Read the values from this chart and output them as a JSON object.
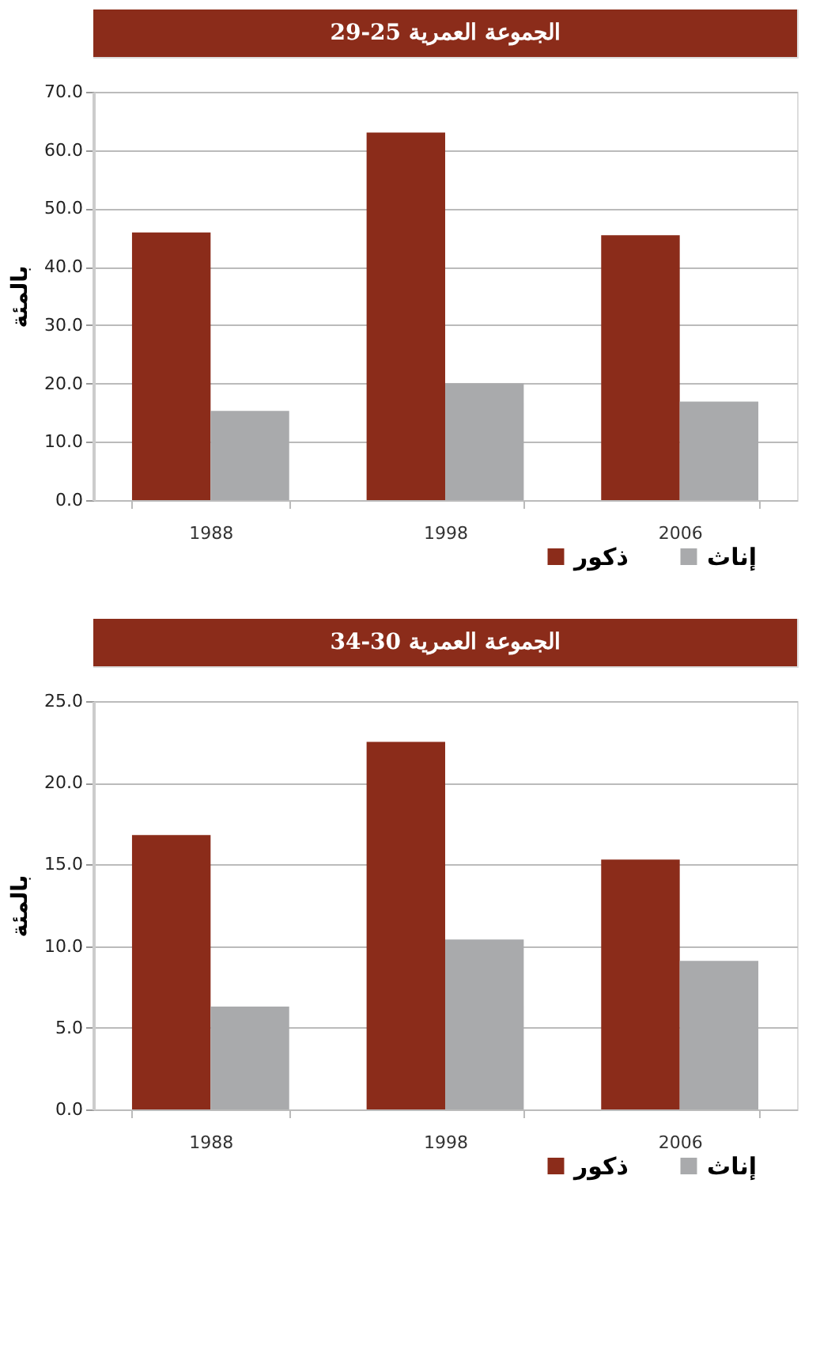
{
  "chart_data": [
    {
      "type": "bar",
      "title": "الجموعة العمرية 25-29",
      "ylabel": "بالمئة",
      "categories": [
        "1988",
        "1998",
        "2006"
      ],
      "series": [
        {
          "name": "ذكور",
          "color": "#8b2c1a",
          "values": [
            45.9,
            63.0,
            45.4
          ]
        },
        {
          "name": "إناث",
          "color": "#a9aaac",
          "values": [
            15.3,
            20.0,
            16.9
          ]
        }
      ],
      "ylim": [
        0,
        70
      ],
      "yticks": [
        {
          "value": 0,
          "label": "0.0"
        },
        {
          "value": 10,
          "label": "10.0"
        },
        {
          "value": 20,
          "label": "20.0"
        },
        {
          "value": 30,
          "label": "30.0"
        },
        {
          "value": 40,
          "label": "40.0"
        },
        {
          "value": 50,
          "label": "50.0"
        },
        {
          "value": 60,
          "label": "60.0"
        },
        {
          "value": 70,
          "label": "70.0"
        }
      ],
      "grid": "y",
      "legend": "bottom right"
    },
    {
      "type": "bar",
      "title": "الجموعة العمرية 30-34",
      "ylabel": "بالمئة",
      "categories": [
        "1988",
        "1998",
        "2006"
      ],
      "series": [
        {
          "name": "ذكور",
          "color": "#8b2c1a",
          "values": [
            16.8,
            22.5,
            15.3
          ]
        },
        {
          "name": "إناث",
          "color": "#a9aaac",
          "values": [
            6.3,
            10.4,
            9.1
          ]
        }
      ],
      "ylim": [
        0,
        25
      ],
      "yticks": [
        {
          "value": 0,
          "label": "0.0"
        },
        {
          "value": 5,
          "label": "5.0"
        },
        {
          "value": 10,
          "label": "10.0"
        },
        {
          "value": 15,
          "label": "15.0"
        },
        {
          "value": 20,
          "label": "20.0"
        },
        {
          "value": 25,
          "label": "25.0"
        }
      ],
      "grid": "y",
      "legend": "bottom right"
    }
  ]
}
